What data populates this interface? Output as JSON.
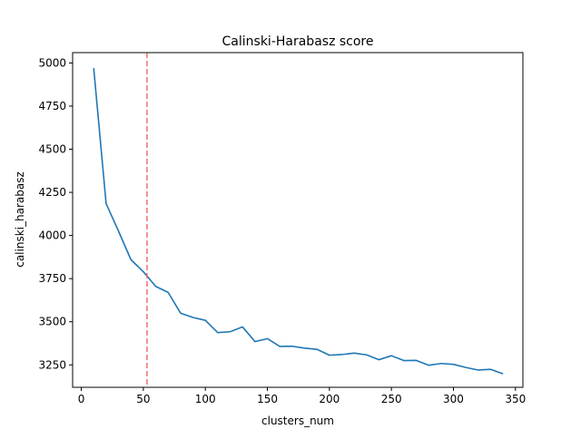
{
  "chart_data": {
    "type": "line",
    "title": "Calinski-Harabasz score",
    "xlabel": "clusters_num",
    "ylabel": "calinski_harabasz",
    "xlim": [
      -7,
      356
    ],
    "ylim": [
      3120,
      5060
    ],
    "xticks": [
      0,
      50,
      100,
      150,
      200,
      250,
      300,
      350
    ],
    "yticks": [
      3250,
      3500,
      3750,
      4000,
      4250,
      4500,
      4750,
      5000
    ],
    "grid": false,
    "vline": {
      "x": 53,
      "color": "#f07070",
      "style": "dashed"
    },
    "series": [
      {
        "color": "#1f77b4",
        "x": [
          10,
          20,
          30,
          40,
          50,
          60,
          70,
          80,
          90,
          100,
          110,
          120,
          130,
          140,
          150,
          160,
          170,
          180,
          190,
          200,
          210,
          220,
          230,
          240,
          250,
          260,
          270,
          280,
          290,
          300,
          310,
          320,
          330,
          340
        ],
        "y": [
          4970,
          4185,
          4025,
          3860,
          3790,
          3705,
          3670,
          3550,
          3525,
          3508,
          3437,
          3442,
          3470,
          3385,
          3402,
          3357,
          3358,
          3347,
          3340,
          3306,
          3310,
          3318,
          3308,
          3280,
          3303,
          3275,
          3276,
          3248,
          3258,
          3253,
          3235,
          3220,
          3224,
          3198
        ]
      }
    ]
  }
}
